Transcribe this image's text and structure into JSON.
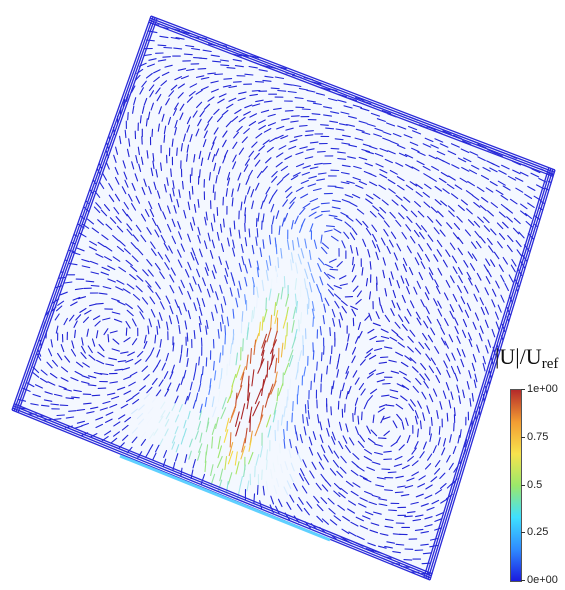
{
  "figure": {
    "description": "Velocity vector field inside a rotated square domain",
    "palette": [
      "#1f1fd6",
      "#3a7bff",
      "#bfe8ff",
      "#ffffff",
      "#a6e85a",
      "#f5e04a",
      "#c0392b"
    ]
  },
  "legend": {
    "title_main": "|U|/U",
    "title_sub": "ref",
    "gradient": [
      "#1a1adf",
      "#2f8cff",
      "#3fe0ff",
      "#9be86a",
      "#f7e34d",
      "#f39c32",
      "#b42a2a"
    ],
    "ticks": [
      {
        "label": "1e+00",
        "value": 1.0
      },
      {
        "label": "0.75",
        "value": 0.75
      },
      {
        "label": "0.5",
        "value": 0.5
      },
      {
        "label": "0.25",
        "value": 0.25
      },
      {
        "label": "0e+00",
        "value": 0.0
      }
    ]
  }
}
